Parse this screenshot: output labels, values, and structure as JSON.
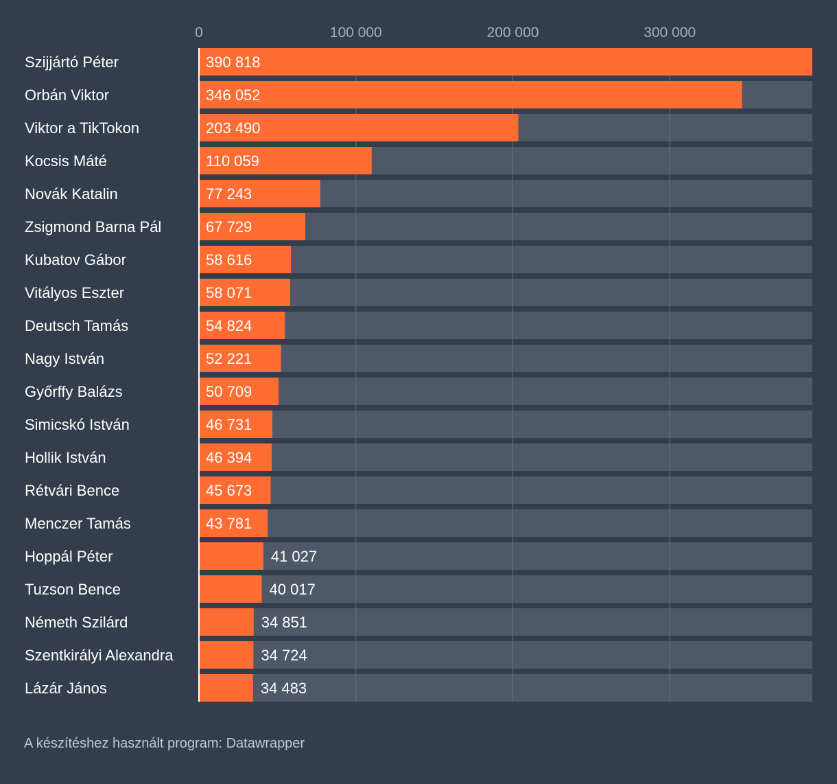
{
  "chart_data": {
    "type": "bar",
    "orientation": "horizontal",
    "categories": [
      "Szijjártó Péter",
      "Orbán Viktor",
      "Viktor a TikTokon",
      "Kocsis Máté",
      "Novák Katalin",
      "Zsigmond Barna Pál",
      "Kubatov Gábor",
      "Vitályos Eszter",
      "Deutsch Tamás",
      "Nagy István",
      "Győrffy Balázs",
      "Simicskó István",
      "Hollik István",
      "Rétvári Bence",
      "Menczer Tamás",
      "Hoppál Péter",
      "Tuzson Bence",
      "Németh Szilárd",
      "Szentkirályi Alexandra",
      "Lázár János"
    ],
    "values": [
      390818,
      346052,
      203490,
      110059,
      77243,
      67729,
      58616,
      58071,
      54824,
      52221,
      50709,
      46731,
      46394,
      45673,
      43781,
      41027,
      40017,
      34851,
      34724,
      34483
    ],
    "value_labels": [
      "390 818",
      "346 052",
      "203 490",
      "110 059",
      "77 243",
      "67 729",
      "58 616",
      "58 071",
      "54 824",
      "52 221",
      "50 709",
      "46 731",
      "46 394",
      "45 673",
      "43 781",
      "41 027",
      "40 017",
      "34 851",
      "34 724",
      "34 483"
    ],
    "x_ticks": [
      0,
      100000,
      200000,
      300000
    ],
    "x_tick_labels": [
      "0",
      "100 000",
      "200 000",
      "300 000"
    ],
    "xlim": [
      0,
      390818
    ],
    "title": "",
    "xlabel": "",
    "ylabel": "",
    "grid": true,
    "legend": "none"
  },
  "colors": {
    "background": "#333d4c",
    "bar": "#ff6d33",
    "track": "#4e5868",
    "gridline": "#667080",
    "tick_label": "#a9b0ba",
    "category_label": "#ffffff",
    "value_label": "#ffffff"
  },
  "footer": {
    "text": "A készítéshez használt program: Datawrapper"
  }
}
